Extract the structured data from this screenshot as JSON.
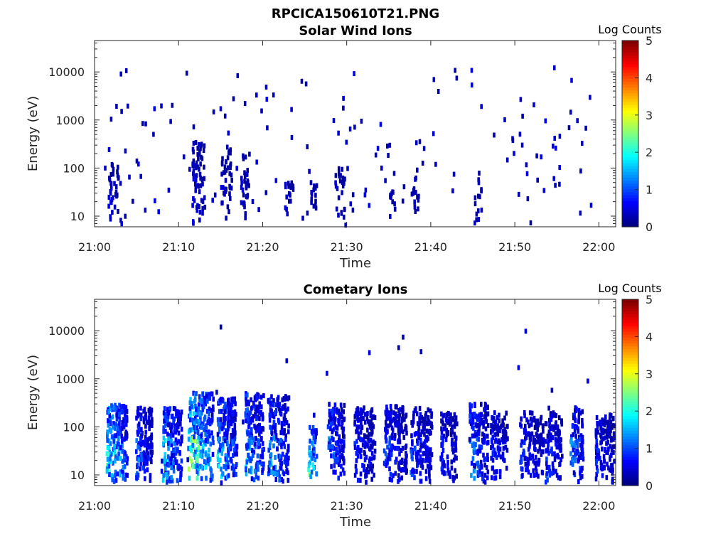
{
  "figure_title": "RPCICA150610T21.PNG",
  "chart_data": [
    {
      "type": "heatmap",
      "title": "Solar Wind Ions",
      "xlabel": "Time",
      "ylabel": "Energy (eV)",
      "xtick_labels": [
        "21:00",
        "21:10",
        "21:20",
        "21:30",
        "21:40",
        "21:50",
        "22:00"
      ],
      "xlim_minutes_after_2100": [
        0,
        62
      ],
      "ytick_labels": [
        "10",
        "100",
        "1000",
        "10000"
      ],
      "ylim": [
        6,
        45000
      ],
      "y_scale": "log",
      "colorbar": {
        "label": "Log Counts",
        "tick_labels": [
          "0",
          "1",
          "2",
          "3",
          "4",
          "5"
        ],
        "range": [
          0,
          5
        ],
        "colormap": "jet"
      },
      "seed": 11,
      "bursts": [
        {
          "t": 1.5,
          "d": 1.5,
          "top": 120,
          "lvl": 0.35,
          "n": 40
        },
        {
          "t": 11.5,
          "d": 1.5,
          "top": 350,
          "lvl": 0.35,
          "n": 60
        },
        {
          "t": 15.0,
          "d": 1.2,
          "top": 300,
          "lvl": 0.3,
          "n": 40
        },
        {
          "t": 17.3,
          "d": 1.0,
          "top": 200,
          "lvl": 0.3,
          "n": 30
        },
        {
          "t": 22.5,
          "d": 1.0,
          "top": 50,
          "lvl": 0.3,
          "n": 20
        },
        {
          "t": 25.5,
          "d": 0.8,
          "top": 50,
          "lvl": 0.3,
          "n": 15
        },
        {
          "t": 28.5,
          "d": 1.2,
          "top": 100,
          "lvl": 0.3,
          "n": 25
        },
        {
          "t": 35.0,
          "d": 0.6,
          "top": 40,
          "lvl": 0.3,
          "n": 10
        },
        {
          "t": 37.5,
          "d": 1.0,
          "top": 80,
          "lvl": 0.3,
          "n": 15
        },
        {
          "t": 45.0,
          "d": 1.0,
          "top": 100,
          "lvl": 0.3,
          "n": 15
        }
      ],
      "scatter": 150
    },
    {
      "type": "heatmap",
      "title": "Cometary Ions",
      "xlabel": "Time",
      "ylabel": "Energy (eV)",
      "xtick_labels": [
        "21:00",
        "21:10",
        "21:20",
        "21:30",
        "21:40",
        "21:50",
        "22:00"
      ],
      "xlim_minutes_after_2100": [
        0,
        62
      ],
      "ytick_labels": [
        "10",
        "100",
        "1000",
        "10000"
      ],
      "ylim": [
        6,
        45000
      ],
      "y_scale": "log",
      "colorbar": {
        "label": "Log Counts",
        "tick_labels": [
          "0",
          "1",
          "2",
          "3",
          "4",
          "5"
        ],
        "range": [
          0,
          5
        ],
        "colormap": "jet"
      },
      "seed": 29,
      "bursts": [
        {
          "t": 1.3,
          "d": 2.5,
          "top": 300,
          "lvl": 1.6,
          "n": 180
        },
        {
          "t": 4.8,
          "d": 2.0,
          "top": 250,
          "lvl": 0.9,
          "n": 130
        },
        {
          "t": 8.0,
          "d": 2.3,
          "top": 250,
          "lvl": 1.2,
          "n": 150
        },
        {
          "t": 11.0,
          "d": 3.0,
          "top": 500,
          "lvl": 2.0,
          "n": 220
        },
        {
          "t": 14.5,
          "d": 2.3,
          "top": 400,
          "lvl": 1.3,
          "n": 170
        },
        {
          "t": 17.8,
          "d": 2.2,
          "top": 500,
          "lvl": 1.2,
          "n": 170
        },
        {
          "t": 20.5,
          "d": 2.5,
          "top": 450,
          "lvl": 1.1,
          "n": 170
        },
        {
          "t": 25.3,
          "d": 1.0,
          "top": 100,
          "lvl": 1.7,
          "n": 45
        },
        {
          "t": 27.6,
          "d": 2.0,
          "top": 300,
          "lvl": 1.0,
          "n": 120
        },
        {
          "t": 30.8,
          "d": 2.5,
          "top": 250,
          "lvl": 0.6,
          "n": 130
        },
        {
          "t": 34.3,
          "d": 2.7,
          "top": 280,
          "lvl": 0.7,
          "n": 160
        },
        {
          "t": 37.5,
          "d": 2.5,
          "top": 250,
          "lvl": 0.7,
          "n": 140
        },
        {
          "t": 41.0,
          "d": 2.0,
          "top": 200,
          "lvl": 0.6,
          "n": 100
        },
        {
          "t": 44.5,
          "d": 2.2,
          "top": 300,
          "lvl": 1.0,
          "n": 130
        },
        {
          "t": 47.0,
          "d": 2.0,
          "top": 200,
          "lvl": 0.6,
          "n": 100
        },
        {
          "t": 50.5,
          "d": 2.8,
          "top": 200,
          "lvl": 0.6,
          "n": 130
        },
        {
          "t": 53.5,
          "d": 2.0,
          "top": 250,
          "lvl": 0.7,
          "n": 110
        },
        {
          "t": 56.5,
          "d": 1.5,
          "top": 250,
          "lvl": 1.0,
          "n": 90
        },
        {
          "t": 59.5,
          "d": 2.2,
          "top": 180,
          "lvl": 0.6,
          "n": 130
        }
      ],
      "scatter": 30
    }
  ]
}
